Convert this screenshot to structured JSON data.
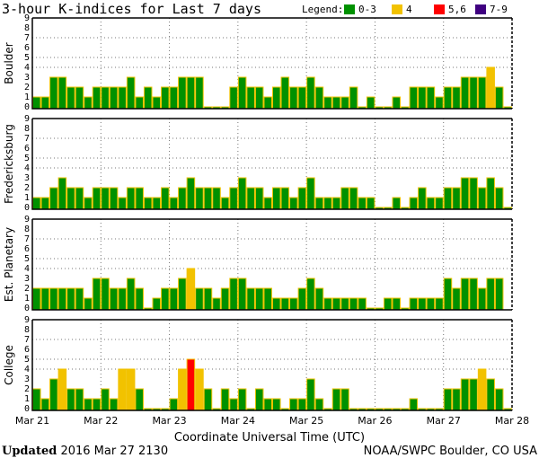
{
  "chart_data": {
    "type": "bar",
    "title": "3-hour K-indices for Last 7 days",
    "xlabel": "Coordinate Universal Time (UTC)",
    "x_ticks": [
      "Mar 21",
      "Mar 22",
      "Mar 23",
      "Mar 24",
      "Mar 25",
      "Mar 26",
      "Mar 27",
      "Mar 28"
    ],
    "y_ticks": [
      "0",
      "1",
      "2",
      "3",
      "4",
      "5",
      "6",
      "7",
      "8",
      "9"
    ],
    "ylim": [
      0,
      9
    ],
    "gridlines_y": [
      4,
      5,
      7
    ],
    "legend": {
      "label": "Legend:",
      "position": "top-right",
      "entries": [
        {
          "label": "0-3",
          "color": "#009100"
        },
        {
          "label": "4",
          "color": "#f2c200"
        },
        {
          "label": "5,6",
          "color": "#ff0000"
        },
        {
          "label": "7-9",
          "color": "#3f0080"
        }
      ]
    },
    "interval_hours": 3,
    "series": [
      {
        "name": "Boulder",
        "values": [
          1,
          1,
          3,
          3,
          2,
          2,
          1,
          2,
          2,
          2,
          2,
          3,
          1,
          2,
          1,
          2,
          2,
          3,
          3,
          3,
          0,
          0,
          0,
          2,
          3,
          2,
          2,
          1,
          2,
          3,
          2,
          2,
          3,
          2,
          1,
          1,
          1,
          2,
          0,
          1,
          0,
          0,
          1,
          0,
          2,
          2,
          2,
          1,
          2,
          2,
          3,
          3,
          3,
          4,
          2,
          0
        ]
      },
      {
        "name": "Fredericksburg",
        "values": [
          1,
          1,
          2,
          3,
          2,
          2,
          1,
          2,
          2,
          2,
          1,
          2,
          2,
          1,
          1,
          2,
          1,
          2,
          3,
          2,
          2,
          2,
          1,
          2,
          3,
          2,
          2,
          1,
          2,
          2,
          1,
          2,
          3,
          1,
          1,
          1,
          2,
          2,
          1,
          1,
          0,
          0,
          1,
          0,
          1,
          2,
          1,
          1,
          2,
          2,
          3,
          3,
          2,
          3,
          2,
          0
        ]
      },
      {
        "name": "Est. Planetary",
        "values": [
          2,
          2,
          2,
          2,
          2,
          2,
          1,
          3,
          3,
          2,
          2,
          3,
          2,
          0,
          1,
          2,
          2,
          3,
          4,
          2,
          2,
          1,
          2,
          3,
          3,
          2,
          2,
          2,
          1,
          1,
          1,
          2,
          3,
          2,
          1,
          1,
          1,
          1,
          1,
          0,
          0,
          1,
          1,
          0,
          1,
          1,
          1,
          1,
          3,
          2,
          3,
          3,
          2,
          3,
          3,
          null
        ]
      },
      {
        "name": "College",
        "values": [
          2,
          1,
          3,
          4,
          2,
          2,
          1,
          1,
          2,
          1,
          4,
          4,
          2,
          0,
          0,
          0,
          1,
          4,
          5,
          4,
          2,
          0,
          2,
          1,
          2,
          0,
          2,
          1,
          1,
          0,
          1,
          1,
          3,
          1,
          0,
          2,
          2,
          0,
          0,
          0,
          0,
          0,
          0,
          0,
          1,
          0,
          0,
          0,
          2,
          2,
          3,
          3,
          4,
          3,
          2,
          0
        ]
      }
    ]
  },
  "footer": {
    "updated_label": "Updated",
    "updated_value": "2016 Mar 27 2130",
    "source": "NOAA/SWPC Boulder, CO USA"
  }
}
